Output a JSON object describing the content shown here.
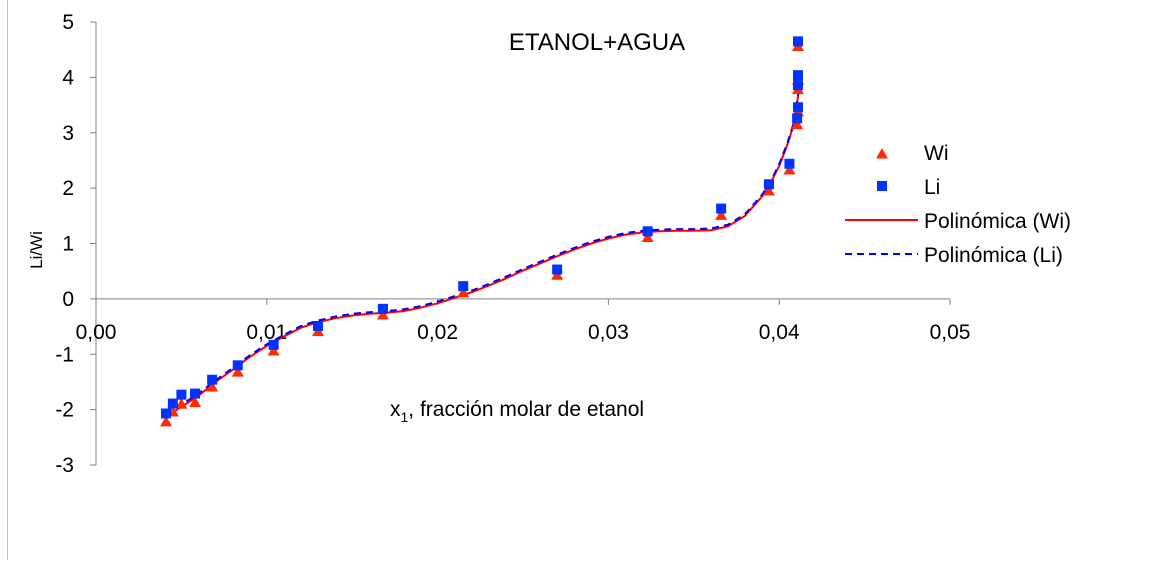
{
  "chart_data": {
    "type": "scatter",
    "title": "ETANOL+AGUA",
    "xlabel_main": "x",
    "xlabel_sub": "1",
    "xlabel_rest": ", fracción molar de etanol",
    "ylabel": "Li/Wi",
    "xlim": [
      0,
      0.05
    ],
    "ylim": [
      -3,
      5
    ],
    "x_ticks": [
      "0,00",
      "0,01",
      "0,02",
      "0,03",
      "0,04",
      "0,05"
    ],
    "y_ticks": [
      "-3",
      "-2",
      "-1",
      "0",
      "1",
      "2",
      "3",
      "4",
      "5"
    ],
    "grid": false,
    "legend_position": "right",
    "series": [
      {
        "name": "Wi",
        "marker": "triangle",
        "color": "#ff2a00",
        "x": [
          0.0041,
          0.0045,
          0.005,
          0.0058,
          0.0068,
          0.0083,
          0.0104,
          0.013,
          0.0168,
          0.0215,
          0.027,
          0.0323,
          0.0366,
          0.0394,
          0.0406,
          0.04105,
          0.0411,
          0.0411,
          0.0411,
          0.0411
        ],
        "y": [
          -2.15,
          -1.97,
          -1.83,
          -1.8,
          -1.52,
          -1.25,
          -0.87,
          -0.52,
          -0.22,
          0.18,
          0.5,
          1.18,
          1.58,
          2.02,
          2.4,
          3.22,
          3.85,
          3.45,
          4.02,
          4.63
        ]
      },
      {
        "name": "Li",
        "marker": "square",
        "color": "#0033ff",
        "x": [
          0.0041,
          0.0045,
          0.005,
          0.0058,
          0.0068,
          0.0083,
          0.0104,
          0.013,
          0.0168,
          0.0215,
          0.027,
          0.0323,
          0.0366,
          0.0394,
          0.0406,
          0.04105,
          0.0411,
          0.0411,
          0.0411,
          0.0411
        ],
        "y": [
          -2.07,
          -1.89,
          -1.73,
          -1.71,
          -1.46,
          -1.2,
          -0.83,
          -0.49,
          -0.18,
          0.23,
          0.53,
          1.22,
          1.63,
          2.07,
          2.44,
          3.26,
          3.86,
          3.46,
          4.04,
          4.65
        ]
      },
      {
        "name": "Polinómica (Wi)",
        "line": "solid",
        "color": "#ff0000",
        "x": [
          0.0041,
          0.005,
          0.006,
          0.007,
          0.008,
          0.009,
          0.01,
          0.011,
          0.012,
          0.013,
          0.014,
          0.015,
          0.016,
          0.017,
          0.018,
          0.019,
          0.02,
          0.021,
          0.022,
          0.023,
          0.024,
          0.025,
          0.026,
          0.027,
          0.028,
          0.029,
          0.03,
          0.031,
          0.032,
          0.033,
          0.034,
          0.035,
          0.036,
          0.037,
          0.038,
          0.039,
          0.0395,
          0.04,
          0.0405,
          0.0408,
          0.041,
          0.0412
        ],
        "y": [
          -2.12,
          -1.95,
          -1.75,
          -1.5,
          -1.28,
          -1.05,
          -0.85,
          -0.68,
          -0.52,
          -0.42,
          -0.35,
          -0.3,
          -0.27,
          -0.25,
          -0.22,
          -0.16,
          -0.08,
          0.02,
          0.12,
          0.24,
          0.37,
          0.51,
          0.64,
          0.77,
          0.89,
          1.0,
          1.09,
          1.16,
          1.2,
          1.22,
          1.23,
          1.23,
          1.24,
          1.31,
          1.5,
          1.85,
          2.1,
          2.4,
          2.8,
          3.1,
          3.45,
          3.85
        ]
      },
      {
        "name": "Polinómica (Li)",
        "line": "dashed",
        "color": "#0000ff",
        "x": [
          0.0041,
          0.005,
          0.006,
          0.007,
          0.008,
          0.009,
          0.01,
          0.011,
          0.012,
          0.013,
          0.014,
          0.015,
          0.016,
          0.017,
          0.018,
          0.019,
          0.02,
          0.021,
          0.022,
          0.023,
          0.024,
          0.025,
          0.026,
          0.027,
          0.028,
          0.029,
          0.03,
          0.031,
          0.032,
          0.033,
          0.034,
          0.035,
          0.036,
          0.037,
          0.038,
          0.039,
          0.0395,
          0.04,
          0.0405,
          0.0408,
          0.041,
          0.0412
        ],
        "y": [
          -2.08,
          -1.91,
          -1.71,
          -1.47,
          -1.25,
          -1.02,
          -0.82,
          -0.65,
          -0.49,
          -0.39,
          -0.32,
          -0.27,
          -0.24,
          -0.22,
          -0.19,
          -0.13,
          -0.05,
          0.05,
          0.15,
          0.27,
          0.4,
          0.54,
          0.67,
          0.8,
          0.92,
          1.03,
          1.12,
          1.19,
          1.23,
          1.25,
          1.26,
          1.26,
          1.27,
          1.34,
          1.53,
          1.88,
          2.13,
          2.43,
          2.83,
          3.13,
          3.48,
          3.88
        ]
      }
    ]
  }
}
